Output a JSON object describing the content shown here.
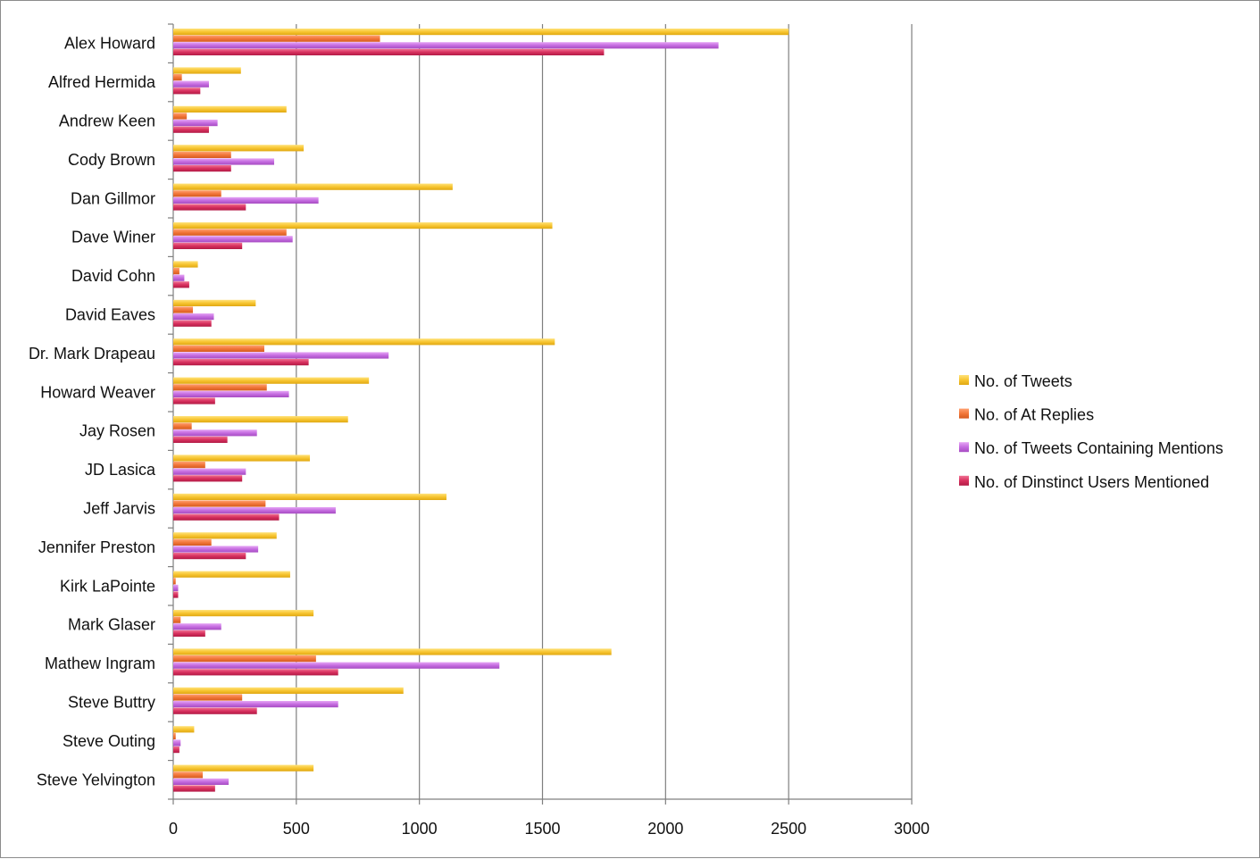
{
  "chart_data": {
    "type": "bar",
    "orientation": "horizontal",
    "title": "",
    "xlabel": "",
    "ylabel": "",
    "xlim": [
      0,
      3000
    ],
    "xticks": [
      0,
      500,
      1000,
      1500,
      2000,
      2500,
      3000
    ],
    "grid": true,
    "legend_position": "right",
    "categories": [
      "Alex Howard",
      "Alfred Hermida",
      "Andrew Keen",
      "Cody Brown",
      "Dan Gillmor",
      "Dave Winer",
      "David Cohn",
      "David Eaves",
      "Dr. Mark Drapeau",
      "Howard Weaver",
      "Jay Rosen",
      "JD Lasica",
      "Jeff Jarvis",
      "Jennifer Preston",
      "Kirk LaPointe",
      "Mark Glaser",
      "Mathew Ingram",
      "Steve Buttry",
      "Steve Outing",
      "Steve Yelvington"
    ],
    "series": [
      {
        "name": "No. of Tweets",
        "color": "#f7c531",
        "values": [
          2500,
          275,
          460,
          530,
          1135,
          1540,
          100,
          335,
          1550,
          795,
          710,
          555,
          1110,
          420,
          475,
          570,
          1780,
          935,
          85,
          570
        ]
      },
      {
        "name": "No. of At Replies",
        "color": "#f2773a",
        "values": [
          840,
          35,
          55,
          235,
          195,
          460,
          25,
          80,
          370,
          380,
          75,
          130,
          375,
          155,
          10,
          30,
          580,
          280,
          10,
          120
        ]
      },
      {
        "name": "No. of Tweets Containing Mentions",
        "color": "#c56ce0",
        "values": [
          2215,
          145,
          180,
          410,
          590,
          485,
          45,
          165,
          875,
          470,
          340,
          295,
          660,
          345,
          20,
          195,
          1325,
          670,
          30,
          225
        ]
      },
      {
        "name": "No. of Dinstinct Users Mentioned",
        "color": "#d8315f",
        "values": [
          1750,
          110,
          145,
          235,
          295,
          280,
          65,
          155,
          550,
          170,
          220,
          280,
          430,
          295,
          20,
          130,
          670,
          340,
          25,
          170
        ]
      }
    ]
  }
}
